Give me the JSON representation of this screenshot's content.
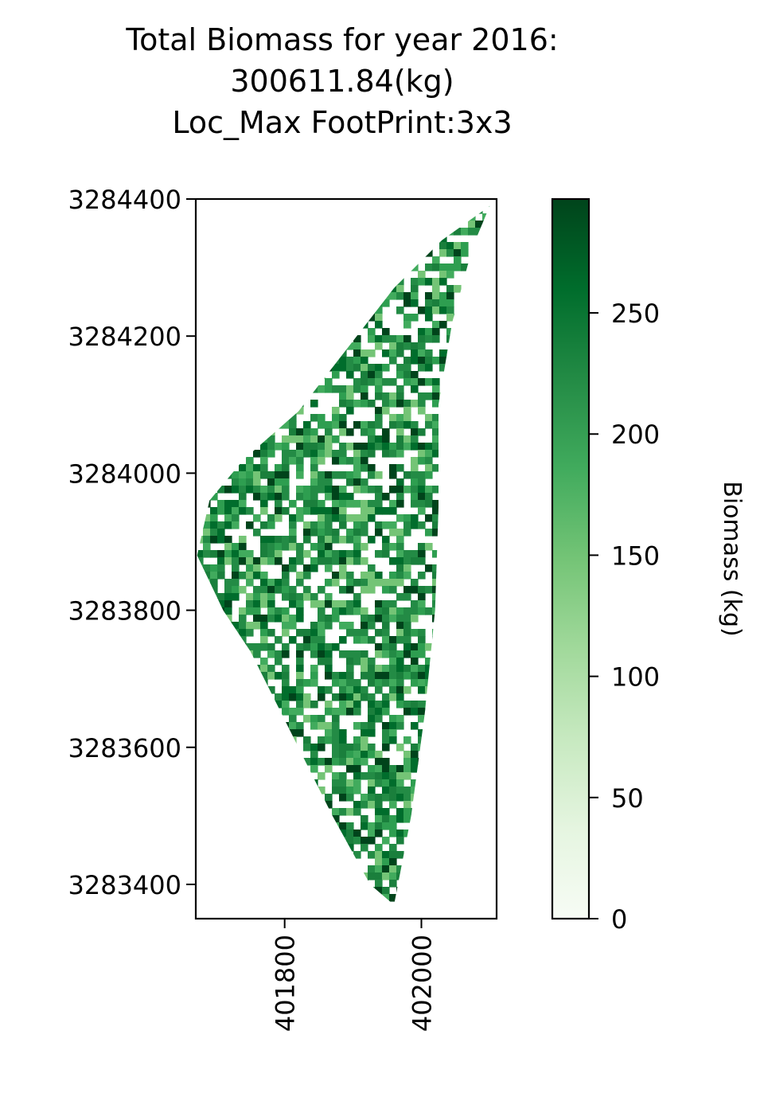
{
  "chart_data": {
    "type": "heatmap",
    "title_lines": [
      "Total Biomass for year 2016:",
      "300611.84(kg)",
      "Loc_Max FootPrint:3x3"
    ],
    "x_ticks": [
      401800,
      402000
    ],
    "y_ticks": [
      3284400,
      3284200,
      3284000,
      3283800,
      3283600,
      3283400
    ],
    "xlim": [
      401670,
      402110
    ],
    "ylim": [
      3283350,
      3284400
    ],
    "colorbar": {
      "label": "Biomass (kg)",
      "ticks": [
        0,
        50,
        100,
        150,
        200,
        250
      ],
      "range": [
        0,
        297
      ],
      "colormap": "Greens",
      "color_low": "#f7fcf5",
      "color_high": "#00441b"
    },
    "region_outline_data_coords": [
      [
        402100,
        3284390
      ],
      [
        402075,
        3284330
      ],
      [
        402045,
        3284220
      ],
      [
        402025,
        3284100
      ],
      [
        402025,
        3283950
      ],
      [
        402020,
        3283800
      ],
      [
        402005,
        3283650
      ],
      [
        401985,
        3283500
      ],
      [
        401960,
        3283370
      ],
      [
        401925,
        3283400
      ],
      [
        401870,
        3283500
      ],
      [
        401810,
        3283620
      ],
      [
        401750,
        3283740
      ],
      [
        401710,
        3283800
      ],
      [
        401672,
        3283880
      ],
      [
        401690,
        3283960
      ],
      [
        401740,
        3284020
      ],
      [
        401820,
        3284090
      ],
      [
        401890,
        3284180
      ],
      [
        401960,
        3284270
      ],
      [
        402030,
        3284340
      ]
    ]
  }
}
